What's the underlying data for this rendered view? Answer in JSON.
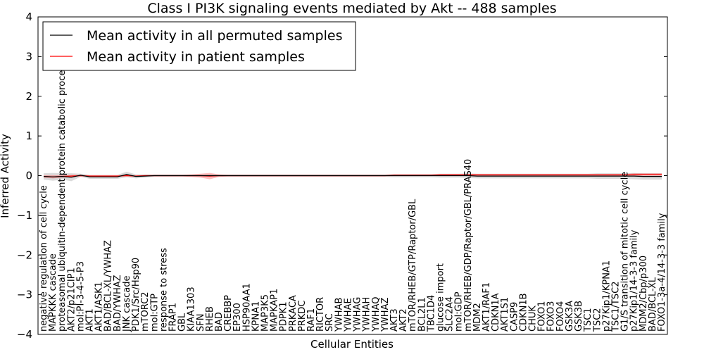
{
  "chart_data": {
    "type": "line",
    "title": "Class I PI3K signaling events mediated by Akt -- 488 samples",
    "xlabel": "Cellular Entities",
    "ylabel": "Inferred Activity",
    "ylim": [
      -4,
      4
    ],
    "yticks": [
      "4",
      "3",
      "2",
      "1",
      "0",
      "−1",
      "−2",
      "−3",
      "−4"
    ],
    "legend_position": "top-left",
    "categories": [
      "negative regulation of cell cycle",
      "MAPKKK cascade",
      "proteasomal ubiquitin-dependent protein catabolic process",
      "AKT2/p21CIP1",
      "mol:PI-3-4-5-P3",
      "AKT1",
      "AKT1/ASK1",
      "BAD/BCL-XL/YWHAZ",
      "BAD/YWHAZ",
      "JNK cascade",
      "PDK1/Src/Hsp90",
      "mTORC2",
      "mol:GTP",
      "response to stress",
      "FRAP1",
      "GBL",
      "KIAA1303",
      "SFN",
      "RHEB",
      "BAD",
      "CREBBP",
      "EP300",
      "HSP90AA1",
      "KPNA1",
      "MAP3K5",
      "MAPKAP1",
      "PDPK1",
      "PRKACA",
      "PRKDC",
      "RAF1",
      "RICTOR",
      "SRC",
      "YWHAB",
      "YWHAE",
      "YWHAG",
      "YWHAH",
      "YWHAQ",
      "YWHAZ",
      "AKT3",
      "AKT2",
      "mTOR/RHEB/GTP/Raptor/GBL",
      "BCL2L1",
      "TBC1D4",
      "glucose import",
      "SLC2A4",
      "mol:GDP",
      "mTOR/RHEB/GDP/Raptor/GBL/PRAS40",
      "MDM2",
      "AKT1/RAF1",
      "CDKN1A",
      "AKT1S1",
      "CASP9",
      "CDKN1B",
      "CHUK",
      "FOXO1",
      "FOXO3",
      "FOXO4",
      "GSK3A",
      "GSK3B",
      "TSC1",
      "TSC2",
      "p27Kip1/KPNA1",
      "TSC1/TSC2",
      "G1/S transition of mitotic cell cycle",
      "p27Kip1/14-3-3 family",
      "MDM2/Cbp/p300",
      "BAD/BCL-XL",
      "FOXO1-3a-4/14-3-3 family"
    ],
    "series": [
      {
        "name": "Mean activity in all permuted samples",
        "color": "#000000",
        "values": [
          -0.02,
          -0.03,
          -0.02,
          -0.04,
          0.01,
          -0.03,
          -0.03,
          -0.03,
          -0.03,
          0.03,
          -0.02,
          -0.01,
          0.0,
          0.0,
          0.0,
          0.0,
          0.0,
          0.0,
          0.0,
          0.0,
          0.0,
          0.0,
          0.0,
          0.0,
          0.0,
          0.0,
          0.0,
          0.0,
          0.0,
          0.0,
          0.0,
          0.0,
          0.0,
          0.0,
          0.0,
          0.0,
          0.0,
          0.0,
          0.0,
          0.0,
          0.0,
          0.0,
          0.0,
          0.0,
          0.0,
          0.0,
          0.0,
          -0.01,
          -0.01,
          -0.01,
          -0.01,
          -0.01,
          -0.01,
          -0.01,
          -0.01,
          -0.01,
          -0.01,
          -0.01,
          -0.01,
          -0.01,
          -0.01,
          -0.01,
          -0.01,
          -0.01,
          -0.01,
          -0.02,
          -0.02,
          -0.02
        ],
        "band": [
          0.08,
          0.1,
          0.08,
          0.1,
          0.04,
          0.05,
          0.05,
          0.05,
          0.05,
          0.07,
          0.05,
          0.04,
          0.03,
          0.03,
          0.03,
          0.03,
          0.03,
          0.03,
          0.03,
          0.03,
          0.03,
          0.03,
          0.03,
          0.03,
          0.03,
          0.03,
          0.03,
          0.03,
          0.03,
          0.03,
          0.03,
          0.03,
          0.03,
          0.03,
          0.03,
          0.03,
          0.03,
          0.03,
          0.04,
          0.04,
          0.04,
          0.04,
          0.04,
          0.05,
          0.05,
          0.05,
          0.06,
          0.06,
          0.06,
          0.06,
          0.06,
          0.06,
          0.06,
          0.06,
          0.06,
          0.06,
          0.06,
          0.06,
          0.06,
          0.06,
          0.07,
          0.07,
          0.07,
          0.07,
          0.08,
          0.08,
          0.08,
          0.08
        ]
      },
      {
        "name": "Mean activity in patient samples",
        "color": "#ff0000",
        "values": [
          -0.02,
          -0.03,
          -0.02,
          -0.01,
          0.0,
          -0.01,
          -0.01,
          -0.01,
          -0.01,
          0.0,
          -0.01,
          0.0,
          0.0,
          0.0,
          0.0,
          0.0,
          0.0,
          0.0,
          -0.01,
          0.0,
          0.0,
          0.0,
          0.0,
          0.0,
          0.0,
          0.0,
          0.0,
          0.0,
          0.0,
          0.0,
          0.0,
          0.0,
          0.0,
          0.0,
          0.0,
          0.0,
          0.0,
          0.0,
          0.01,
          0.01,
          0.01,
          0.01,
          0.01,
          0.02,
          0.02,
          0.02,
          0.02,
          0.02,
          0.02,
          0.02,
          0.02,
          0.02,
          0.02,
          0.02,
          0.02,
          0.02,
          0.02,
          0.02,
          0.02,
          0.02,
          0.02,
          0.02,
          0.02,
          0.02,
          0.03,
          0.03,
          0.03,
          0.03
        ],
        "band": [
          0.03,
          0.04,
          0.03,
          0.03,
          0.02,
          0.02,
          0.02,
          0.02,
          0.02,
          0.02,
          0.02,
          0.02,
          0.02,
          0.02,
          0.02,
          0.02,
          0.03,
          0.05,
          0.08,
          0.03,
          0.02,
          0.02,
          0.02,
          0.02,
          0.02,
          0.02,
          0.02,
          0.02,
          0.02,
          0.02,
          0.02,
          0.02,
          0.02,
          0.02,
          0.02,
          0.02,
          0.02,
          0.02,
          0.02,
          0.02,
          0.02,
          0.02,
          0.02,
          0.02,
          0.02,
          0.02,
          0.02,
          0.02,
          0.02,
          0.02,
          0.02,
          0.02,
          0.02,
          0.02,
          0.02,
          0.02,
          0.02,
          0.02,
          0.02,
          0.02,
          0.02,
          0.02,
          0.02,
          0.02,
          0.03,
          0.03,
          0.03,
          0.03
        ]
      }
    ]
  }
}
